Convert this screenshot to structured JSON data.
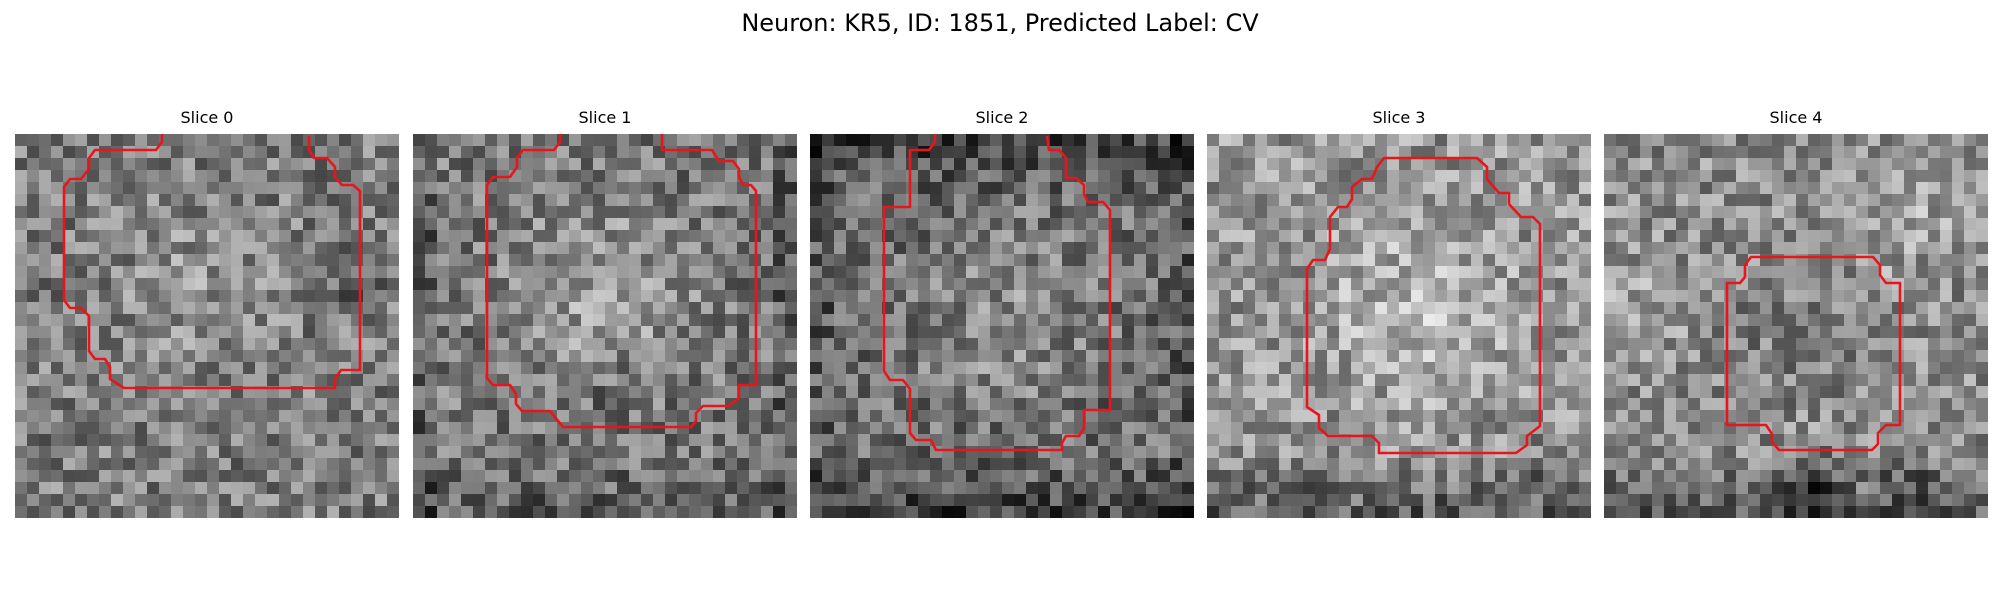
{
  "figure": {
    "title": "Neuron: KR5, ID: 1851, Predicted Label: CV",
    "contour_color": "#e8161c",
    "panels": [
      {
        "title": "Slice 0"
      },
      {
        "title": "Slice 1"
      },
      {
        "title": "Slice 2"
      },
      {
        "title": "Slice 3"
      },
      {
        "title": "Slice 4"
      }
    ]
  }
}
